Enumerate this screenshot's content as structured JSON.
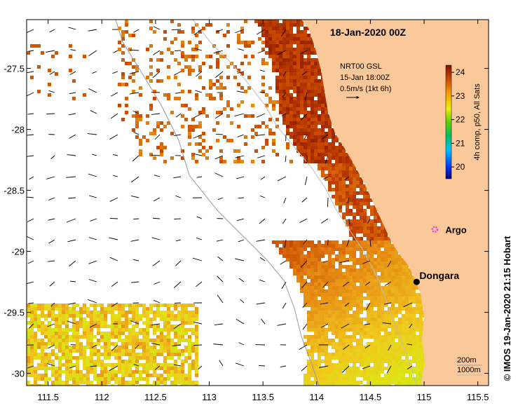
{
  "map": {
    "title": "18-Jan-2020 00Z",
    "legend_lines": [
      "NRT00 GSL",
      "15-Jan 18:00Z",
      "0.5m/s (1kt 6h)"
    ],
    "colorbar_caption": "4h comp, p50, All Sats",
    "colorbar_ticks": [
      "24",
      "23",
      "22",
      "21",
      "20"
    ],
    "colorbar_range": [
      19.5,
      24.3
    ],
    "places": [
      {
        "name": "Argo",
        "lon": 115.1,
        "lat": -28.82,
        "marker": "argo-float-icon",
        "color": "#e040e0"
      },
      {
        "name": "Dongara",
        "lon": 114.93,
        "lat": -29.25,
        "marker": "town-dot",
        "color": "#000000"
      }
    ],
    "depth_contours": [
      "200m",
      "1000m"
    ],
    "x_ticks": [
      "111.5",
      "112",
      "112.5",
      "113",
      "113.5",
      "114",
      "114.5",
      "115",
      "115.5"
    ],
    "x_tick_values": [
      111.5,
      112,
      112.5,
      113,
      113.5,
      114,
      114.5,
      115,
      115.5
    ],
    "y_ticks": [
      "-27.5",
      "-28",
      "-28.5",
      "-29",
      "-29.5",
      "-30"
    ],
    "y_tick_values": [
      -27.5,
      -28,
      -28.5,
      -29,
      -29.5,
      -30
    ],
    "lon_range": [
      111.3,
      115.6
    ],
    "lat_range": [
      -30.1,
      -27.1
    ],
    "credit": "© IMOS 19-Jan-2020 21:15 Hobart",
    "land_color": "#fbc89a"
  }
}
